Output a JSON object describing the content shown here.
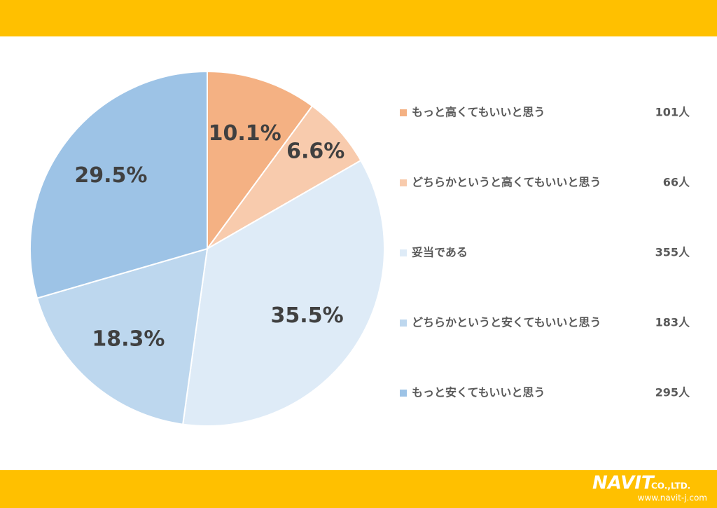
{
  "chart_data": {
    "type": "pie",
    "categories": [
      "もっと高くてもいいと思う",
      "どちらかというと高くてもいいと思う",
      "妥当である",
      "どちらかというと安くてもいいと思う",
      "もっと安くてもいいと思う"
    ],
    "values": [
      10.1,
      6.6,
      35.5,
      18.3,
      29.5
    ],
    "value_labels": [
      "10.1%",
      "6.6%",
      "35.5%",
      "18.3%",
      "29.5%"
    ],
    "counts": [
      "101人",
      "66人",
      "355人",
      "183人",
      "295人"
    ],
    "colors": [
      "#f4b183",
      "#f8cbad",
      "#deebf7",
      "#bdd7ee",
      "#9dc3e6"
    ],
    "legend": "right"
  },
  "footer": {
    "logo": "NAVIT",
    "company": "CO.,LTD.",
    "url": "www.navit-j.com"
  }
}
